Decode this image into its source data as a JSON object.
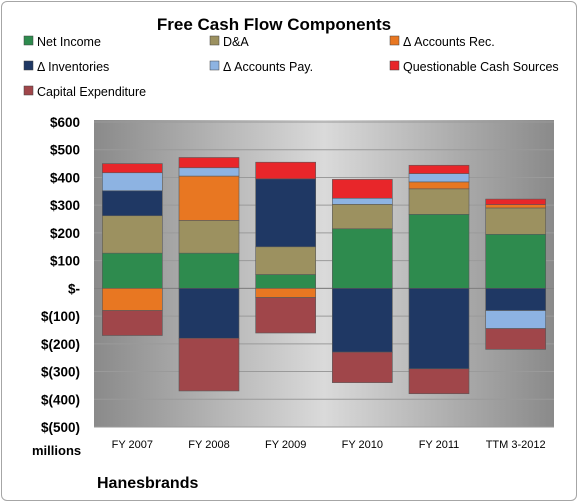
{
  "chart_data": {
    "type": "bar",
    "stacked": true,
    "title": "Free Cash Flow Components",
    "units_label": "millions",
    "company": "Hanesbrands",
    "categories": [
      "FY 2007",
      "FY 2008",
      "FY 2009",
      "FY 2010",
      "FY 2011",
      "TTM 3-2012"
    ],
    "ylim": [
      -500,
      600
    ],
    "yticks": [
      600,
      500,
      400,
      300,
      200,
      100,
      0,
      -100,
      -200,
      -300,
      -400,
      -500
    ],
    "ytick_labels": [
      "$600",
      "$500",
      "$400",
      "$300",
      "$200",
      "$100",
      "$-",
      "$(100)",
      "$(200)",
      "$(300)",
      "$(400)",
      "$(500)"
    ],
    "grid": true,
    "legend_position": "top",
    "series": [
      {
        "name": "Net Income",
        "color": "#2e8b4e",
        "values": [
          127,
          127,
          50,
          215,
          267,
          195
        ]
      },
      {
        "name": "D&A",
        "color": "#9c9160",
        "values": [
          135,
          118,
          100,
          88,
          92,
          95
        ]
      },
      {
        "name": "Δ Accounts Rec.",
        "color": "#e87722",
        "values": [
          -80,
          160,
          -33,
          0,
          25,
          12
        ]
      },
      {
        "name": "Δ Inventories",
        "color": "#1f3864",
        "values": [
          90,
          -180,
          245,
          -230,
          -290,
          -80
        ]
      },
      {
        "name": "Δ Accounts Pay.",
        "color": "#8db3e2",
        "values": [
          65,
          30,
          0,
          22,
          30,
          -65
        ]
      },
      {
        "name": "Questionable Cash Sources",
        "color": "#e8262a",
        "values": [
          33,
          37,
          60,
          68,
          30,
          20
        ]
      },
      {
        "name": "Capital Expenditure",
        "color": "#a0464a",
        "values": [
          -90,
          -190,
          -128,
          -110,
          -90,
          -75
        ]
      }
    ]
  }
}
